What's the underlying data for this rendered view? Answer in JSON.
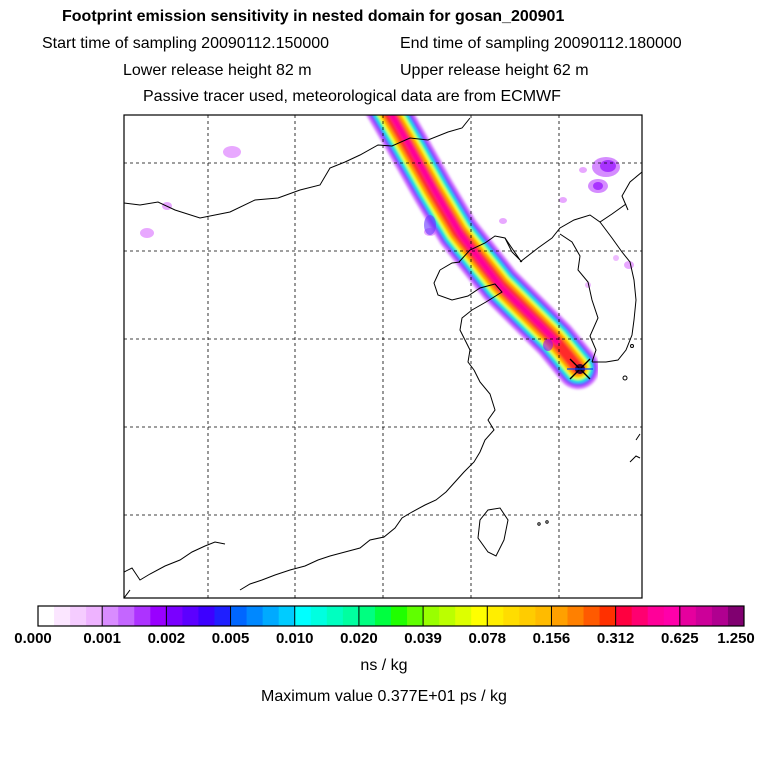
{
  "header": {
    "title": "Footprint emission sensitivity in nested domain for gosan_200901",
    "start_sampling": "Start time of sampling 20090112.150000",
    "end_sampling": "End time of sampling 20090112.180000",
    "lower_release": "Lower release height   82 m",
    "upper_release": "Upper release height   62 m",
    "tracer_info": "Passive tracer used, meteorological data are from ECMWF"
  },
  "map": {
    "receptor_marker": "x-marker-icon",
    "plume_colors": [
      "#cc66ff",
      "#6633ff",
      "#00ffff",
      "#ffff00",
      "#ff9900",
      "#ff2b2b",
      "#ff0099"
    ]
  },
  "legend": {
    "ticks": [
      "0.000",
      "0.001",
      "0.002",
      "0.005",
      "0.010",
      "0.020",
      "0.039",
      "0.078",
      "0.156",
      "0.312",
      "0.625",
      "1.250"
    ],
    "colors": [
      [
        "#ffffff",
        "#fbe6ff",
        "#f5ccff",
        "#eeb3ff"
      ],
      [
        "#d98cff",
        "#c466ff",
        "#ad33ff",
        "#9900ff"
      ],
      [
        "#7a00ff",
        "#5c00ff",
        "#3d00ff",
        "#1f1fff"
      ],
      [
        "#0066ff",
        "#0088ff",
        "#00aaff",
        "#00ccff"
      ],
      [
        "#00ffff",
        "#00ffe0",
        "#00ffc0",
        "#00ffa0"
      ],
      [
        "#00ff80",
        "#00ff40",
        "#20ff00",
        "#60ff00"
      ],
      [
        "#99ff00",
        "#bbff00",
        "#ddff00",
        "#ffff00"
      ],
      [
        "#ffee00",
        "#ffdd00",
        "#ffcc00",
        "#ffbb00"
      ],
      [
        "#ffa000",
        "#ff8000",
        "#ff5a00",
        "#ff3000"
      ],
      [
        "#ff0040",
        "#ff0070",
        "#ff0099",
        "#ff00aa"
      ],
      [
        "#e6009e",
        "#cc0099",
        "#b00090",
        "#800070"
      ]
    ],
    "unit": "ns / kg",
    "max_value": "Maximum value  0.377E+01 ps / kg"
  }
}
